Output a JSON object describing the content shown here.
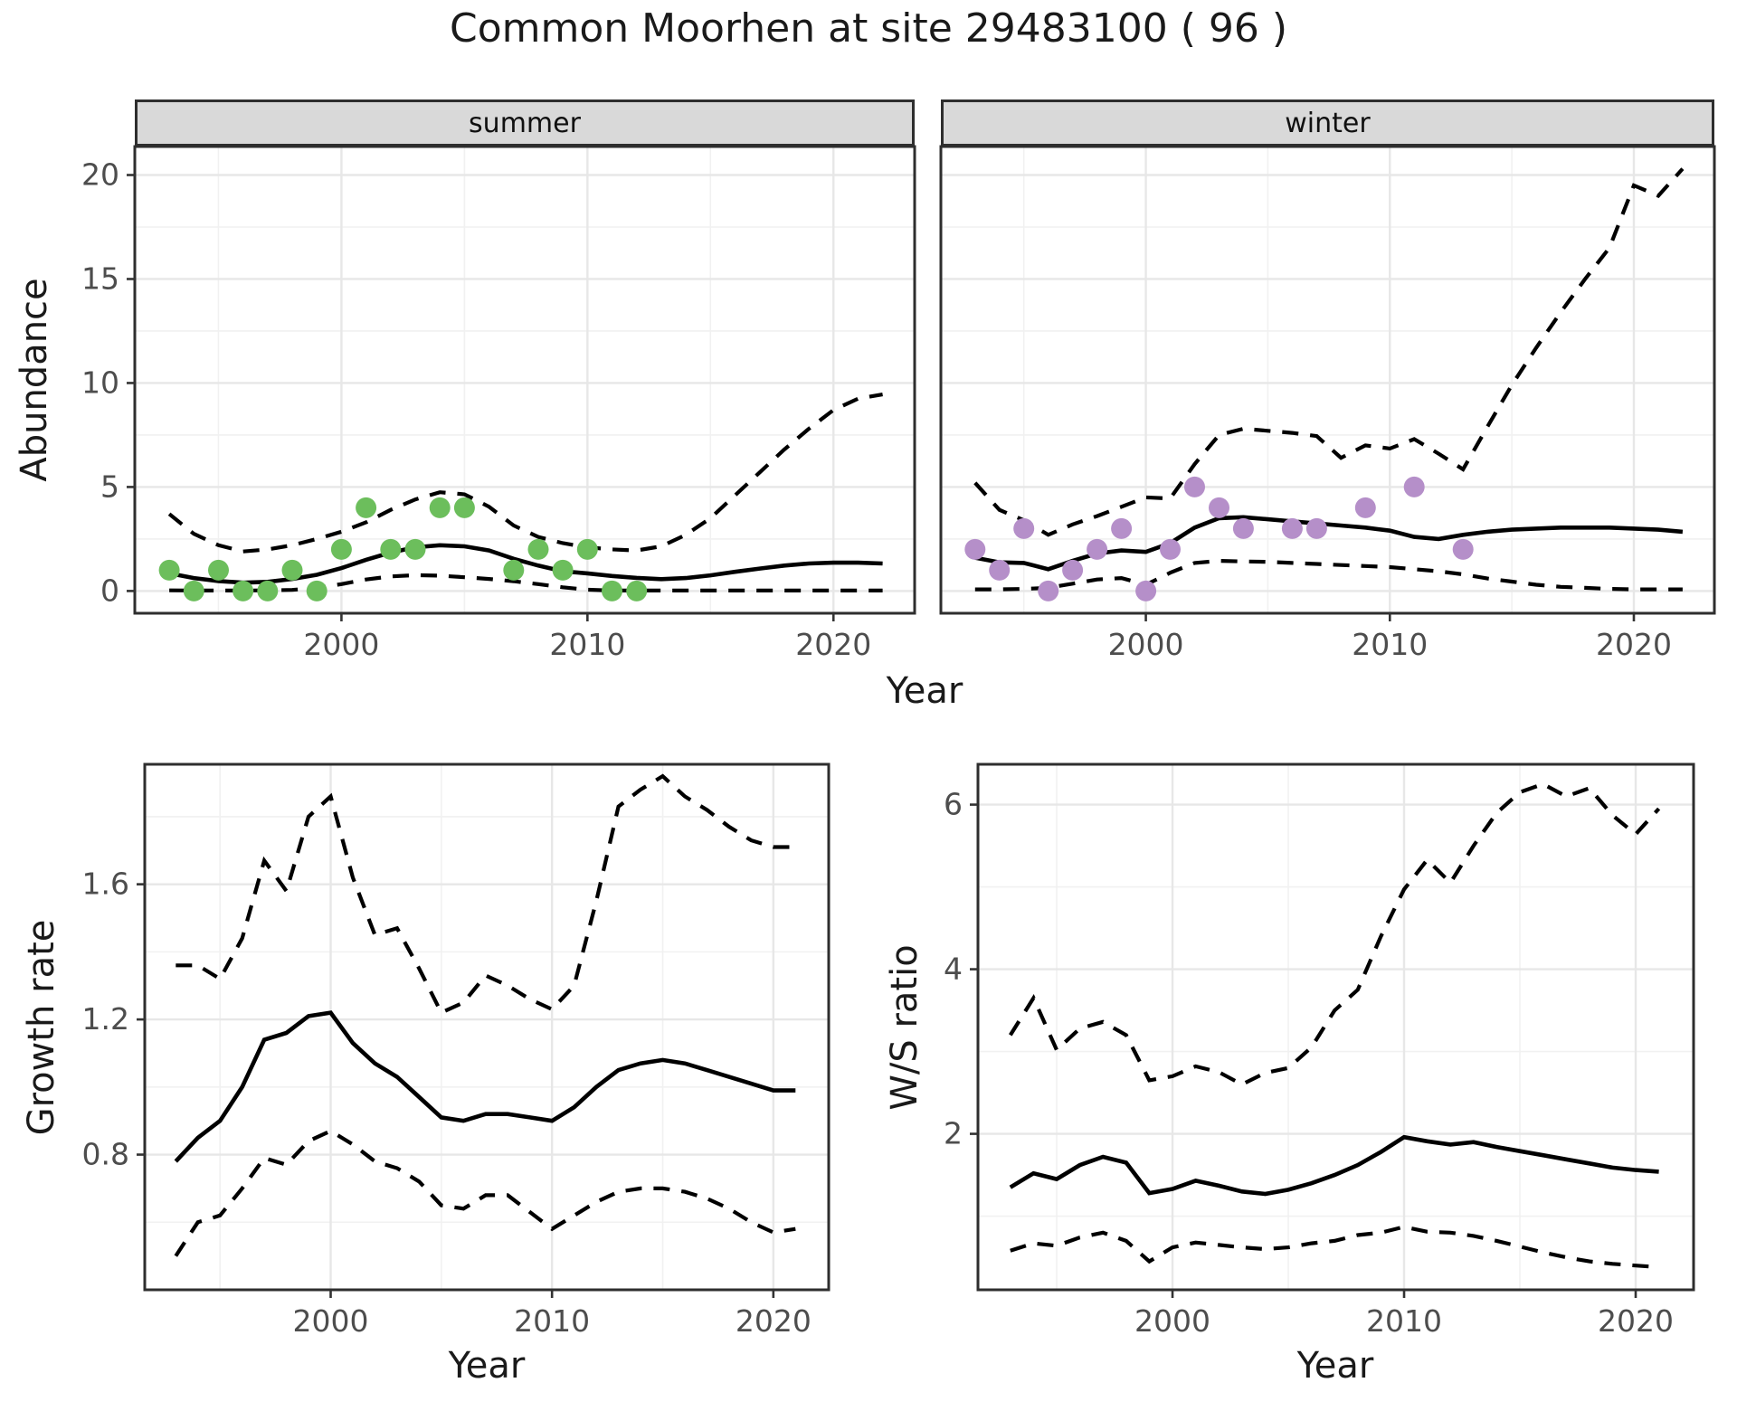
{
  "title": "Common Moorhen at site 29483100 ( 96 )",
  "labels": {
    "facet_summer": "summer",
    "facet_winter": "winter",
    "abundance_ylabel": "Abundance",
    "top_xlabel": "Year",
    "growth_ylabel": "Growth rate",
    "growth_xlabel": "Year",
    "ws_ylabel": "W/S ratio",
    "ws_xlabel": "Year"
  },
  "colors": {
    "summer_points": "#6cbe5c",
    "winter_points": "#b58fc9",
    "line": "#000000",
    "panel_border": "#2e2e2e",
    "grid_major": "#e7e7e7",
    "grid_minor": "#f1f1f1",
    "tick_text": "#4d4d4d",
    "strip_bg": "#d9d9d9"
  },
  "chart_data": [
    {
      "id": "abundance_summer",
      "type": "line",
      "facet": "summer",
      "title": "Common Moorhen at site 29483100 ( 96 )",
      "xlabel": "Year",
      "ylabel": "Abundance",
      "xlim": [
        1991.6,
        2023.3
      ],
      "ylim": [
        -1.07,
        21.37
      ],
      "xticks": [
        2000,
        2010,
        2020
      ],
      "yticks": [
        0,
        5,
        10,
        15,
        20
      ],
      "xminor": [
        1995,
        2005,
        2015
      ],
      "yminor": [
        2.5,
        7.5,
        12.5,
        17.5
      ],
      "show_ytick_labels": true,
      "series": [
        {
          "name": "mean",
          "style": "solid",
          "x": [
            1993,
            1994,
            1995,
            1996,
            1997,
            1998,
            1999,
            2000,
            2001,
            2002,
            2003,
            2004,
            2005,
            2006,
            2007,
            2008,
            2009,
            2010,
            2011,
            2012,
            2013,
            2014,
            2015,
            2016,
            2017,
            2018,
            2019,
            2020,
            2021,
            2022
          ],
          "y": [
            0.85,
            0.62,
            0.48,
            0.4,
            0.44,
            0.58,
            0.78,
            1.1,
            1.5,
            1.85,
            2.1,
            2.2,
            2.15,
            1.95,
            1.55,
            1.22,
            0.95,
            0.85,
            0.72,
            0.63,
            0.57,
            0.62,
            0.75,
            0.92,
            1.08,
            1.22,
            1.32,
            1.36,
            1.36,
            1.32
          ]
        },
        {
          "name": "upper_ci",
          "style": "dashed",
          "x": [
            1993,
            1994,
            1995,
            1996,
            1997,
            1998,
            1999,
            2000,
            2001,
            2002,
            2003,
            2004,
            2005,
            2006,
            2007,
            2008,
            2009,
            2010,
            2011,
            2012,
            2013,
            2014,
            2015,
            2016,
            2017,
            2018,
            2019,
            2020,
            2021,
            2022
          ],
          "y": [
            3.7,
            2.75,
            2.2,
            1.9,
            2.0,
            2.2,
            2.5,
            2.85,
            3.3,
            3.9,
            4.4,
            4.75,
            4.65,
            4.05,
            3.15,
            2.6,
            2.3,
            2.1,
            2.0,
            1.95,
            2.15,
            2.7,
            3.5,
            4.6,
            5.7,
            6.8,
            7.8,
            8.7,
            9.25,
            9.45
          ]
        },
        {
          "name": "lower_ci",
          "style": "dashed",
          "x": [
            1993,
            1994,
            1995,
            1996,
            1997,
            1998,
            1999,
            2000,
            2001,
            2002,
            2003,
            2004,
            2005,
            2006,
            2007,
            2008,
            2009,
            2010,
            2011,
            2012,
            2013,
            2014,
            2015,
            2016,
            2017,
            2018,
            2019,
            2020,
            2021,
            2022
          ],
          "y": [
            0.03,
            0.02,
            0.02,
            0.02,
            0.03,
            0.05,
            0.15,
            0.33,
            0.55,
            0.7,
            0.76,
            0.74,
            0.66,
            0.58,
            0.47,
            0.33,
            0.18,
            0.06,
            0.02,
            0.02,
            0.02,
            0.02,
            0.02,
            0.02,
            0.02,
            0.02,
            0.02,
            0.02,
            0.02,
            0.02
          ]
        }
      ],
      "points": {
        "name": "observed_counts",
        "color": "#6cbe5c",
        "x": [
          1993,
          1994,
          1995,
          1996,
          1997,
          1998,
          1999,
          2000,
          2001,
          2002,
          2003,
          2004,
          2005,
          2007,
          2008,
          2009,
          2010,
          2011,
          2012
        ],
        "y": [
          1,
          0,
          1,
          0,
          0,
          1,
          0,
          2,
          4,
          2,
          2,
          4,
          4,
          1,
          2,
          1,
          2,
          0,
          0
        ]
      }
    },
    {
      "id": "abundance_winter",
      "type": "line",
      "facet": "winter",
      "xlabel": "Year",
      "ylabel": "Abundance",
      "xlim": [
        1991.6,
        2023.3
      ],
      "ylim": [
        -1.07,
        21.37
      ],
      "xticks": [
        2000,
        2010,
        2020
      ],
      "yticks": [
        0,
        5,
        10,
        15,
        20
      ],
      "xminor": [
        1995,
        2005,
        2015
      ],
      "yminor": [
        2.5,
        7.5,
        12.5,
        17.5
      ],
      "show_ytick_labels": false,
      "series": [
        {
          "name": "mean",
          "style": "solid",
          "x": [
            1993,
            1994,
            1995,
            1996,
            1997,
            1998,
            1999,
            2000,
            2001,
            2002,
            2003,
            2004,
            2005,
            2006,
            2007,
            2008,
            2009,
            2010,
            2011,
            2012,
            2013,
            2014,
            2015,
            2016,
            2017,
            2018,
            2019,
            2020,
            2021,
            2022
          ],
          "y": [
            1.6,
            1.38,
            1.35,
            1.05,
            1.45,
            1.8,
            1.95,
            1.88,
            2.3,
            3.05,
            3.5,
            3.55,
            3.45,
            3.35,
            3.25,
            3.15,
            3.05,
            2.9,
            2.6,
            2.5,
            2.7,
            2.85,
            2.95,
            3.0,
            3.05,
            3.05,
            3.05,
            3.0,
            2.95,
            2.85
          ]
        },
        {
          "name": "upper_ci",
          "style": "dashed",
          "x": [
            1993,
            1994,
            1995,
            1996,
            1997,
            1998,
            1999,
            2000,
            2001,
            2002,
            2003,
            2004,
            2005,
            2006,
            2007,
            2008,
            2009,
            2010,
            2011,
            2012,
            2013,
            2014,
            2015,
            2016,
            2017,
            2018,
            2019,
            2020,
            2021,
            2022
          ],
          "y": [
            5.2,
            3.9,
            3.4,
            2.7,
            3.2,
            3.6,
            4.05,
            4.5,
            4.45,
            6.1,
            7.5,
            7.8,
            7.7,
            7.6,
            7.45,
            6.4,
            7.0,
            6.85,
            7.3,
            6.6,
            5.85,
            7.9,
            9.9,
            11.7,
            13.4,
            15.0,
            16.5,
            19.5,
            19.0,
            20.3
          ]
        },
        {
          "name": "lower_ci",
          "style": "dashed",
          "x": [
            1993,
            1994,
            1995,
            1996,
            1997,
            1998,
            1999,
            2000,
            2001,
            2002,
            2003,
            2004,
            2005,
            2006,
            2007,
            2008,
            2009,
            2010,
            2011,
            2012,
            2013,
            2014,
            2015,
            2016,
            2017,
            2018,
            2019,
            2020,
            2021,
            2022
          ],
          "y": [
            0.08,
            0.08,
            0.1,
            0.15,
            0.35,
            0.55,
            0.62,
            0.3,
            0.88,
            1.35,
            1.45,
            1.42,
            1.4,
            1.35,
            1.3,
            1.25,
            1.2,
            1.15,
            1.05,
            0.95,
            0.8,
            0.6,
            0.45,
            0.3,
            0.2,
            0.15,
            0.1,
            0.08,
            0.08,
            0.08
          ]
        }
      ],
      "points": {
        "name": "observed_counts",
        "color": "#b58fc9",
        "x": [
          1993,
          1994,
          1995,
          1996,
          1997,
          1998,
          1999,
          2000,
          2001,
          2002,
          2003,
          2004,
          2006,
          2007,
          2009,
          2011,
          2013
        ],
        "y": [
          2,
          1,
          3,
          0,
          1,
          2,
          3,
          0,
          2,
          5,
          4,
          3,
          3,
          3,
          4,
          5,
          2
        ]
      }
    },
    {
      "id": "growth_rate",
      "type": "line",
      "xlabel": "Year",
      "ylabel": "Growth rate",
      "xlim": [
        1991.6,
        2022.5
      ],
      "ylim": [
        0.4,
        1.955
      ],
      "xticks": [
        2000,
        2010,
        2020
      ],
      "yticks": [
        0.8,
        1.2,
        1.6
      ],
      "xminor": [
        1995,
        2005,
        2015
      ],
      "yminor": [
        0.6,
        1.0,
        1.4,
        1.8
      ],
      "show_ytick_labels": true,
      "series": [
        {
          "name": "mean",
          "style": "solid",
          "x": [
            1993,
            1994,
            1995,
            1996,
            1997,
            1998,
            1999,
            2000,
            2001,
            2002,
            2003,
            2004,
            2005,
            2006,
            2007,
            2008,
            2009,
            2010,
            2011,
            2012,
            2013,
            2014,
            2015,
            2016,
            2017,
            2018,
            2019,
            2020,
            2021
          ],
          "y": [
            0.78,
            0.85,
            0.9,
            1.0,
            1.14,
            1.16,
            1.21,
            1.22,
            1.13,
            1.07,
            1.03,
            0.97,
            0.91,
            0.9,
            0.92,
            0.92,
            0.91,
            0.9,
            0.94,
            1.0,
            1.05,
            1.07,
            1.08,
            1.07,
            1.05,
            1.03,
            1.01,
            0.99,
            0.99
          ]
        },
        {
          "name": "upper_ci",
          "style": "dashed",
          "x": [
            1993,
            1994,
            1995,
            1996,
            1997,
            1998,
            1999,
            2000,
            2001,
            2002,
            2003,
            2004,
            2005,
            2006,
            2007,
            2008,
            2009,
            2010,
            2011,
            2012,
            2013,
            2014,
            2015,
            2016,
            2017,
            2018,
            2019,
            2020,
            2021
          ],
          "y": [
            1.36,
            1.36,
            1.32,
            1.44,
            1.67,
            1.58,
            1.8,
            1.86,
            1.62,
            1.45,
            1.47,
            1.35,
            1.22,
            1.25,
            1.33,
            1.3,
            1.26,
            1.23,
            1.3,
            1.55,
            1.83,
            1.88,
            1.92,
            1.86,
            1.82,
            1.77,
            1.73,
            1.71,
            1.71
          ]
        },
        {
          "name": "lower_ci",
          "style": "dashed",
          "x": [
            1993,
            1994,
            1995,
            1996,
            1997,
            1998,
            1999,
            2000,
            2001,
            2002,
            2003,
            2004,
            2005,
            2006,
            2007,
            2008,
            2009,
            2010,
            2011,
            2012,
            2013,
            2014,
            2015,
            2016,
            2017,
            2018,
            2019,
            2020,
            2021
          ],
          "y": [
            0.5,
            0.6,
            0.62,
            0.7,
            0.79,
            0.77,
            0.84,
            0.87,
            0.83,
            0.78,
            0.76,
            0.72,
            0.65,
            0.64,
            0.68,
            0.68,
            0.63,
            0.58,
            0.62,
            0.66,
            0.69,
            0.7,
            0.7,
            0.69,
            0.67,
            0.64,
            0.6,
            0.57,
            0.58
          ]
        }
      ]
    },
    {
      "id": "ws_ratio",
      "type": "line",
      "xlabel": "Year",
      "ylabel": "W/S ratio",
      "xlim": [
        1991.6,
        2022.5
      ],
      "ylim": [
        0.105,
        6.49
      ],
      "xticks": [
        2000,
        2010,
        2020
      ],
      "yticks": [
        2,
        4,
        6
      ],
      "xminor": [
        1995,
        2005,
        2015
      ],
      "yminor": [
        1,
        3,
        5
      ],
      "show_ytick_labels": true,
      "series": [
        {
          "name": "mean",
          "style": "solid",
          "x": [
            1993,
            1994,
            1995,
            1996,
            1997,
            1998,
            1999,
            2000,
            2001,
            2002,
            2003,
            2004,
            2005,
            2006,
            2007,
            2008,
            2009,
            2010,
            2011,
            2012,
            2013,
            2014,
            2015,
            2016,
            2017,
            2018,
            2019,
            2020,
            2021
          ],
          "y": [
            1.35,
            1.52,
            1.45,
            1.62,
            1.72,
            1.65,
            1.28,
            1.33,
            1.43,
            1.37,
            1.3,
            1.27,
            1.32,
            1.4,
            1.5,
            1.62,
            1.78,
            1.96,
            1.91,
            1.87,
            1.9,
            1.84,
            1.79,
            1.74,
            1.69,
            1.64,
            1.59,
            1.56,
            1.54
          ]
        },
        {
          "name": "upper_ci",
          "style": "dashed",
          "x": [
            1993,
            1994,
            1995,
            1996,
            1997,
            1998,
            1999,
            2000,
            2001,
            2002,
            2003,
            2004,
            2005,
            2006,
            2007,
            2008,
            2009,
            2010,
            2011,
            2012,
            2013,
            2014,
            2015,
            2016,
            2017,
            2018,
            2019,
            2020,
            2021
          ],
          "y": [
            3.2,
            3.65,
            3.02,
            3.28,
            3.36,
            3.2,
            2.65,
            2.7,
            2.82,
            2.75,
            2.6,
            2.74,
            2.8,
            3.05,
            3.5,
            3.75,
            4.4,
            4.97,
            5.33,
            5.05,
            5.5,
            5.9,
            6.15,
            6.25,
            6.1,
            6.2,
            5.87,
            5.64,
            5.95
          ]
        },
        {
          "name": "lower_ci",
          "style": "dashed",
          "x": [
            1993,
            1994,
            1995,
            1996,
            1997,
            1998,
            1999,
            2000,
            2001,
            2002,
            2003,
            2004,
            2005,
            2006,
            2007,
            2008,
            2009,
            2010,
            2011,
            2012,
            2013,
            2014,
            2015,
            2016,
            2017,
            2018,
            2019,
            2020,
            2021
          ],
          "y": [
            0.58,
            0.67,
            0.64,
            0.74,
            0.8,
            0.7,
            0.45,
            0.62,
            0.68,
            0.65,
            0.62,
            0.6,
            0.62,
            0.67,
            0.7,
            0.77,
            0.8,
            0.87,
            0.81,
            0.8,
            0.76,
            0.7,
            0.63,
            0.56,
            0.5,
            0.45,
            0.42,
            0.4,
            0.38
          ]
        }
      ]
    }
  ]
}
